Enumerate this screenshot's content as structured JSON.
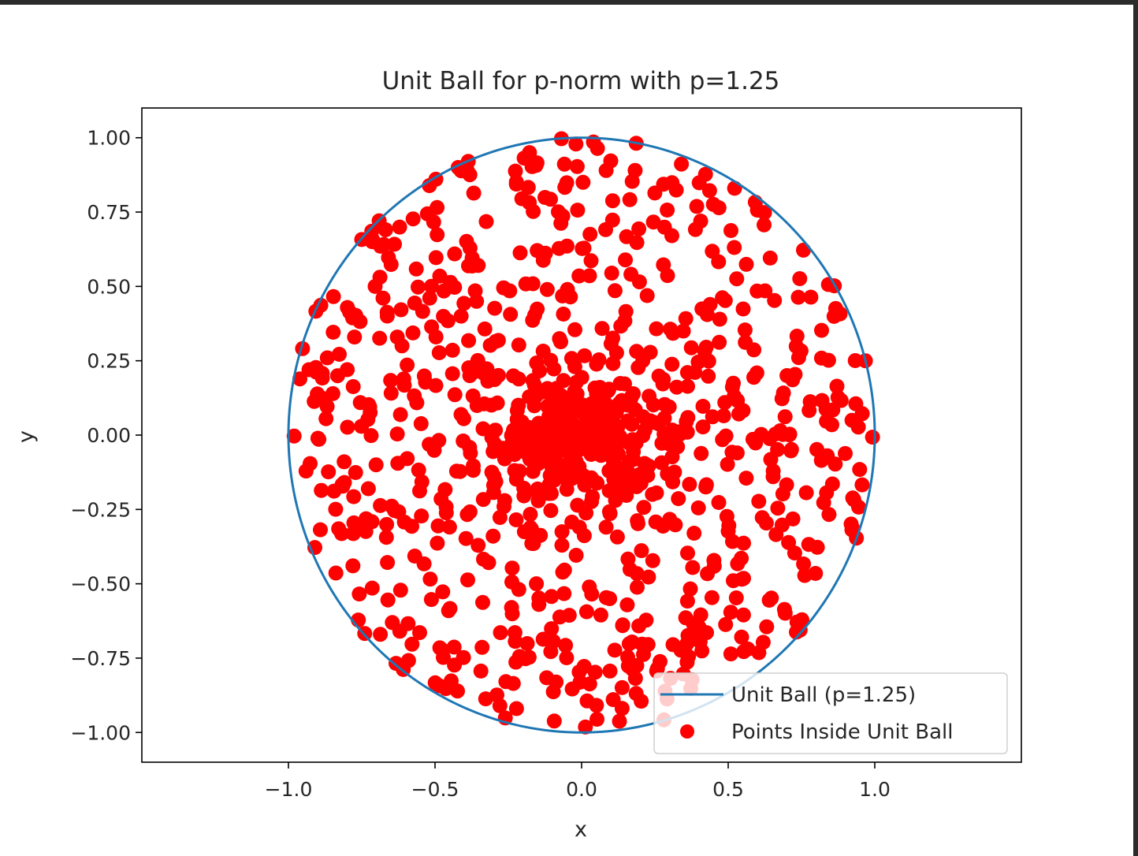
{
  "chart_data": {
    "type": "scatter",
    "title": "Unit Ball for p-norm with p=1.25",
    "xlabel": "x",
    "ylabel": "y",
    "xlim": [
      -1.5,
      1.5
    ],
    "ylim": [
      -1.1,
      1.1
    ],
    "xticks": [
      "−1.0",
      "−0.5",
      "0.0",
      "0.5",
      "1.0"
    ],
    "xtick_values": [
      -1.0,
      -0.5,
      0.0,
      0.5,
      1.0
    ],
    "yticks": [
      "1.00",
      "0.75",
      "0.50",
      "0.25",
      "0.00",
      "−0.25",
      "−0.50",
      "−0.75",
      "−1.00"
    ],
    "ytick_values": [
      1.0,
      0.75,
      0.5,
      0.25,
      0.0,
      -0.25,
      -0.5,
      -0.75,
      -1.0
    ],
    "grid": false,
    "legend_position": "lower-right",
    "series": [
      {
        "name": "Unit Ball (p=1.25)",
        "kind": "line",
        "color": "#1f77b4",
        "p": 1.25
      },
      {
        "name": "Points Inside Unit Ball",
        "kind": "scatter",
        "color": "#ff0000",
        "count": 1000
      }
    ]
  }
}
